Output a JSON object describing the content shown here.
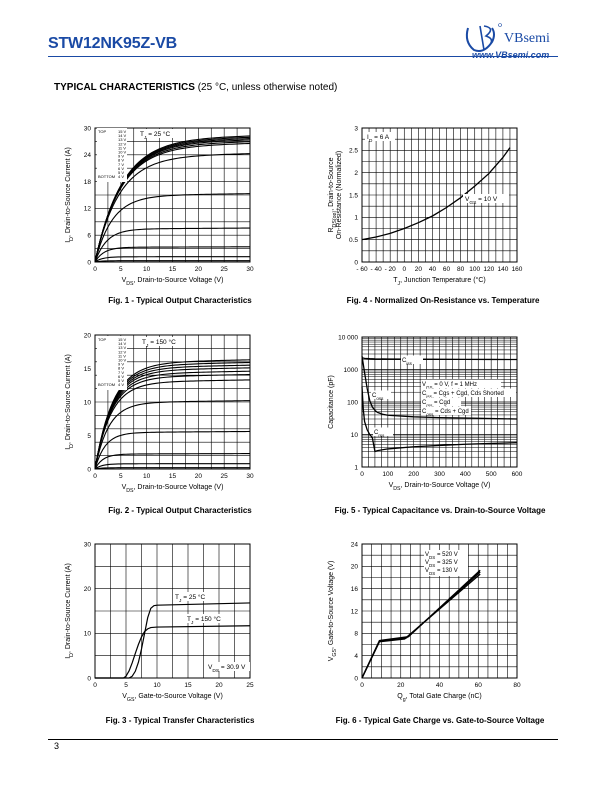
{
  "header": {
    "part_number": "STW12NK95Z-VB",
    "brand": "VBsemi",
    "url": "www.VBsemi.com"
  },
  "section": {
    "title": "TYPICAL CHARACTERISTICS",
    "note": "(25 °C, unless otherwise noted)"
  },
  "footer": {
    "page_number": "3"
  },
  "chart_data": [
    {
      "id": "fig1",
      "type": "line",
      "caption": "Fig. 1 - Typical Output Characteristics",
      "xlabel": "VDS, Drain-to-Source Voltage (V)",
      "ylabel": "ID, Drain-to-Source Current (A)",
      "xlim": [
        0,
        30
      ],
      "ylim": [
        0,
        30
      ],
      "xticks": [
        0,
        5,
        10,
        15,
        20,
        25,
        30
      ],
      "yticks": [
        0,
        6,
        12,
        18,
        24,
        30
      ],
      "grid": true,
      "annotations": [
        "TJ = 25 °C"
      ],
      "legend_block": {
        "top_label": "TOP",
        "bottom_label": "BOTTOM",
        "entries": [
          "15 V",
          "14 V",
          "13 V",
          "12 V",
          "11 V",
          "10 V",
          "9 V",
          "8 V",
          "7 V",
          "6 V",
          "5 V",
          "4 V"
        ]
      },
      "series": [
        {
          "sat": 28.3
        },
        {
          "sat": 28.0
        },
        {
          "sat": 27.7
        },
        {
          "sat": 27.4
        },
        {
          "sat": 27.0
        },
        {
          "sat": 26.6
        },
        {
          "sat": 24.3
        },
        {
          "sat": 15.3
        },
        {
          "sat": 7.6
        },
        {
          "sat": 3.4
        },
        {
          "sat": 1.2
        },
        {
          "sat": 0.3
        }
      ]
    },
    {
      "id": "fig2",
      "type": "line",
      "caption": "Fig. 2 - Typical Output Characteristics",
      "xlabel": "VDS, Drain-to-Source Voltage (V)",
      "ylabel": "ID, Drain-to-Source Current (A)",
      "xlim": [
        0,
        30
      ],
      "ylim": [
        0,
        20
      ],
      "xticks": [
        0,
        5,
        10,
        15,
        20,
        25,
        30
      ],
      "yticks": [
        0,
        5,
        10,
        15,
        20
      ],
      "grid": true,
      "annotations": [
        "TJ = 150 °C"
      ],
      "legend_block": {
        "top_label": "TOP",
        "bottom_label": "BOTTOM",
        "entries": [
          "15 V",
          "14 V",
          "13 V",
          "12 V",
          "11 V",
          "10 V",
          "9 V",
          "8 V",
          "7 V",
          "6 V",
          "5 V",
          "4 V"
        ]
      },
      "series": [
        {
          "sat": 16.3
        },
        {
          "sat": 15.9
        },
        {
          "sat": 15.5
        },
        {
          "sat": 15.1
        },
        {
          "sat": 14.6
        },
        {
          "sat": 14.1
        },
        {
          "sat": 13.3
        },
        {
          "sat": 10.2
        },
        {
          "sat": 5.6
        },
        {
          "sat": 2.3
        },
        {
          "sat": 0.8
        },
        {
          "sat": 0.2
        }
      ]
    },
    {
      "id": "fig3",
      "type": "line",
      "caption": "Fig. 3 - Typical Transfer Characteristics",
      "xlabel": "VGS, Gate-to-Source Voltage (V)",
      "ylabel": "ID, Drain-to-Source Current (A)",
      "xlim": [
        0,
        25
      ],
      "ylim": [
        0,
        30
      ],
      "xticks": [
        0,
        5,
        10,
        15,
        20,
        25
      ],
      "yticks": [
        0,
        10,
        20,
        30
      ],
      "grid": true,
      "annotations": [
        "TJ = 25 °C",
        "TJ = 150 °C",
        "VDS = 30.9 V"
      ],
      "series": [
        {
          "name": "TJ = 25 °C",
          "x": [
            0,
            5.5,
            6,
            6.5,
            7,
            7.5,
            8,
            8.5,
            9,
            9.5,
            10,
            25
          ],
          "y": [
            0,
            0,
            0.4,
            1.5,
            3.5,
            6.5,
            10,
            13.5,
            15.6,
            16.2,
            16.3,
            16.8
          ]
        },
        {
          "name": "TJ = 150 °C",
          "x": [
            0,
            4.6,
            5,
            5.5,
            6,
            6.5,
            7,
            7.5,
            8,
            8.5,
            9,
            10,
            25
          ],
          "y": [
            0,
            0,
            0.4,
            1.6,
            3.4,
            5.5,
            7.5,
            9.2,
            10.4,
            11.0,
            11.3,
            11.4,
            11.7
          ]
        }
      ]
    },
    {
      "id": "fig4",
      "type": "line",
      "caption": "Fig. 4 - Normalized On-Resistance vs. Temperature",
      "xlabel": "TJ, Junction Temperature (°C)",
      "ylabel": "RDS(on), Drain-to-Source On-Resistance (Normalized)",
      "xlim": [
        -60,
        160
      ],
      "ylim": [
        0,
        3
      ],
      "xticks": [
        -60,
        -40,
        -20,
        0,
        20,
        40,
        60,
        80,
        100,
        120,
        140,
        160
      ],
      "xticklabels": [
        "- 60",
        "- 40",
        "- 20",
        "0",
        "20",
        "40",
        "60",
        "80",
        "100",
        "120",
        "140",
        "160"
      ],
      "yticks": [
        0,
        0.5,
        1,
        1.5,
        2,
        2.5,
        3
      ],
      "grid": true,
      "annotations": [
        "ID = 6 A",
        "VGS = 10 V"
      ],
      "series": [
        {
          "x": [
            -60,
            -40,
            -20,
            0,
            20,
            40,
            60,
            80,
            100,
            120,
            140,
            150
          ],
          "y": [
            0.5,
            0.56,
            0.64,
            0.75,
            0.88,
            1.03,
            1.22,
            1.44,
            1.7,
            1.98,
            2.34,
            2.56
          ]
        }
      ]
    },
    {
      "id": "fig5",
      "type": "line",
      "caption": "Fig. 5 - Typical Capacitance vs. Drain-to-Source Voltage",
      "xlabel": "VDS, Drain-to-Source Voltage (V)",
      "ylabel": "Capacitance (pF)",
      "xlim": [
        0,
        600
      ],
      "ylim": [
        1,
        10000
      ],
      "yscale": "log",
      "xticks": [
        0,
        100,
        200,
        300,
        400,
        500,
        600
      ],
      "yticks": [
        1,
        10,
        100,
        1000,
        10000
      ],
      "yticklabels": [
        "1",
        "10",
        "100",
        "1000",
        "10 000"
      ],
      "grid": true,
      "annotations": [
        "Ciss",
        "Coss",
        "Crss",
        "VGS = 0 V, f = 1 MHz",
        "Ciss = Cgs + Cgd, Cds Shorted",
        "Crss = Cgd",
        "Coss = Cds + Cgd"
      ],
      "series": [
        {
          "name": "Ciss",
          "x": [
            0,
            10,
            30,
            50,
            100,
            200,
            300,
            400,
            500,
            600
          ],
          "y": [
            2300,
            2200,
            2150,
            2120,
            2100,
            2080,
            2060,
            2050,
            2040,
            2030
          ]
        },
        {
          "name": "Coss",
          "x": [
            0,
            10,
            20,
            30,
            40,
            50,
            60,
            80,
            100,
            200,
            300,
            400,
            500,
            600
          ],
          "y": [
            2600,
            800,
            260,
            110,
            70,
            55,
            48,
            42,
            39,
            35,
            33,
            32,
            31,
            30
          ]
        },
        {
          "name": "Crss",
          "x": [
            0,
            5,
            10,
            20,
            30,
            40,
            50,
            60,
            100,
            200,
            300,
            400,
            500,
            600
          ],
          "y": [
            300,
            60,
            25,
            14,
            10,
            8,
            3,
            3.2,
            3.6,
            4.2,
            4.6,
            5.0,
            5.3,
            5.6
          ]
        }
      ]
    },
    {
      "id": "fig6",
      "type": "line",
      "caption": "Fig. 6 - Typical Gate Charge vs. Gate-to-Source Voltage",
      "xlabel": "Qg, Total Gate Charge (nC)",
      "ylabel": "VGS, Gate-to-Source Voltage (V)",
      "xlim": [
        0,
        80
      ],
      "ylim": [
        0,
        24
      ],
      "xticks": [
        0,
        20,
        40,
        60,
        80
      ],
      "yticks": [
        0,
        4,
        8,
        12,
        16,
        20,
        24
      ],
      "grid": true,
      "annotations": [
        "VDS = 520 V",
        "VDS = 325 V",
        "VDS = 130 V"
      ],
      "series": [
        {
          "name": "VDS = 520 V",
          "x": [
            0,
            9,
            24,
            61
          ],
          "y": [
            0,
            6.7,
            7.4,
            19.3
          ]
        },
        {
          "name": "VDS = 325 V",
          "x": [
            0,
            9,
            23,
            61
          ],
          "y": [
            0,
            6.6,
            7.2,
            19.0
          ]
        },
        {
          "name": "VDS = 130 V",
          "x": [
            0,
            9,
            22,
            61
          ],
          "y": [
            0,
            6.5,
            7.0,
            18.6
          ]
        }
      ]
    }
  ]
}
